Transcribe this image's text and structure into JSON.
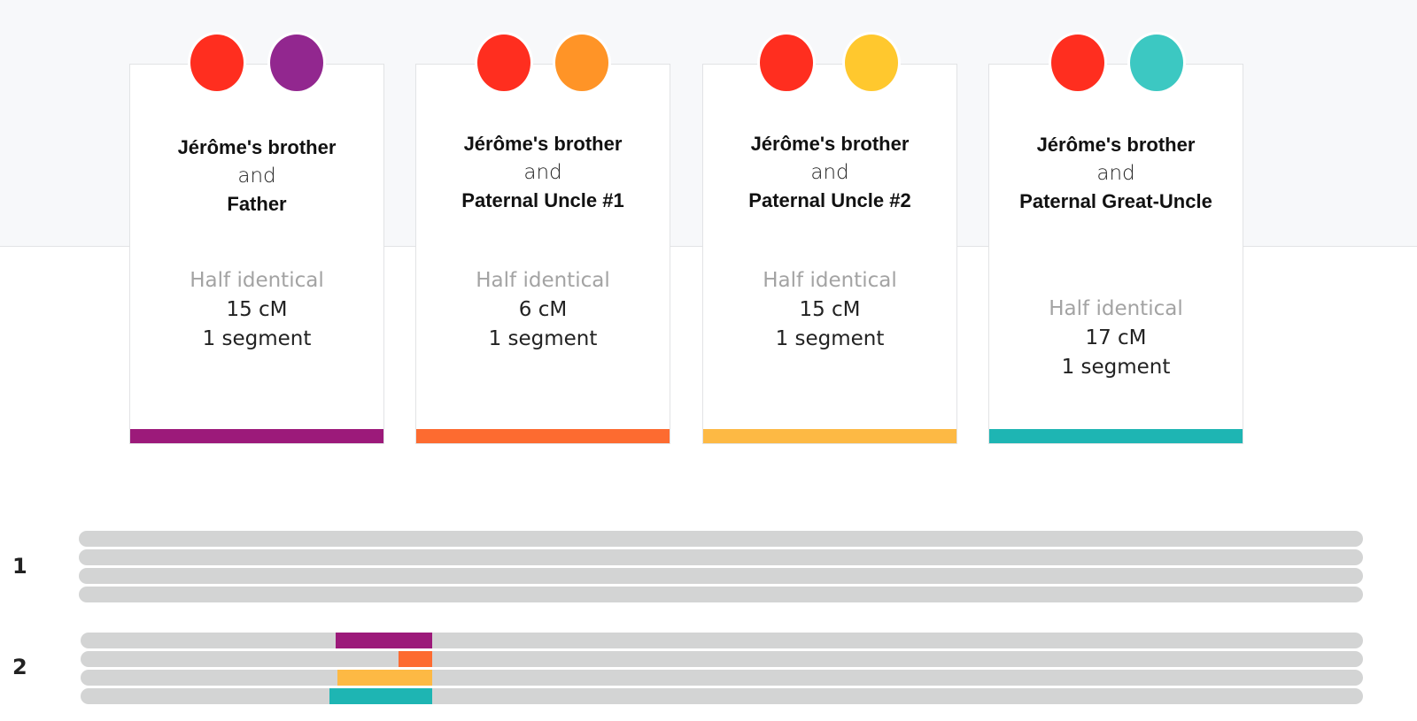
{
  "cards": [
    {
      "person_a": "Jérôme's brother",
      "and": "and",
      "person_b": "Father",
      "label": "Half identical",
      "cm": "15 cM",
      "segments": "1 segment",
      "colors": {
        "dot_a": "#ff2e1f",
        "dot_b": "#92278f",
        "bar": "#9c1a7a"
      }
    },
    {
      "person_a": "Jérôme's brother",
      "and": "and",
      "person_b": "Paternal Uncle #1",
      "label": "Half identical",
      "cm": "6 cM",
      "segments": "1 segment",
      "colors": {
        "dot_a": "#ff2e1f",
        "dot_b": "#ff9427",
        "bar": "#fd6b30"
      }
    },
    {
      "person_a": "Jérôme's brother",
      "and": "and",
      "person_b": "Paternal Uncle #2",
      "label": "Half identical",
      "cm": "15 cM",
      "segments": "1 segment",
      "colors": {
        "dot_a": "#ff2e1f",
        "dot_b": "#ffc82e",
        "bar": "#fdb944"
      }
    },
    {
      "person_a": "Jérôme's brother",
      "and": "and",
      "person_b": "Paternal Great-Uncle",
      "label": "Half identical",
      "cm": "17 cM",
      "segments": "1 segment",
      "colors": {
        "dot_a": "#ff2e1f",
        "dot_b": "#3cc8c2",
        "bar": "#1eb5b3"
      }
    }
  ],
  "chromosomes": [
    {
      "label": "1",
      "tracks": [
        {
          "segment": null
        },
        {
          "segment": null
        },
        {
          "segment": null
        },
        {
          "segment": null
        }
      ]
    },
    {
      "label": "2",
      "tracks": [
        {
          "segment": {
            "start": 0.199,
            "end": 0.274,
            "color": "#9c1a7a"
          }
        },
        {
          "segment": {
            "start": 0.248,
            "end": 0.274,
            "color": "#fd6b30"
          }
        },
        {
          "segment": {
            "start": 0.2,
            "end": 0.274,
            "color": "#fdb944"
          }
        },
        {
          "segment": {
            "start": 0.194,
            "end": 0.274,
            "color": "#1eb5b3"
          }
        }
      ]
    }
  ]
}
